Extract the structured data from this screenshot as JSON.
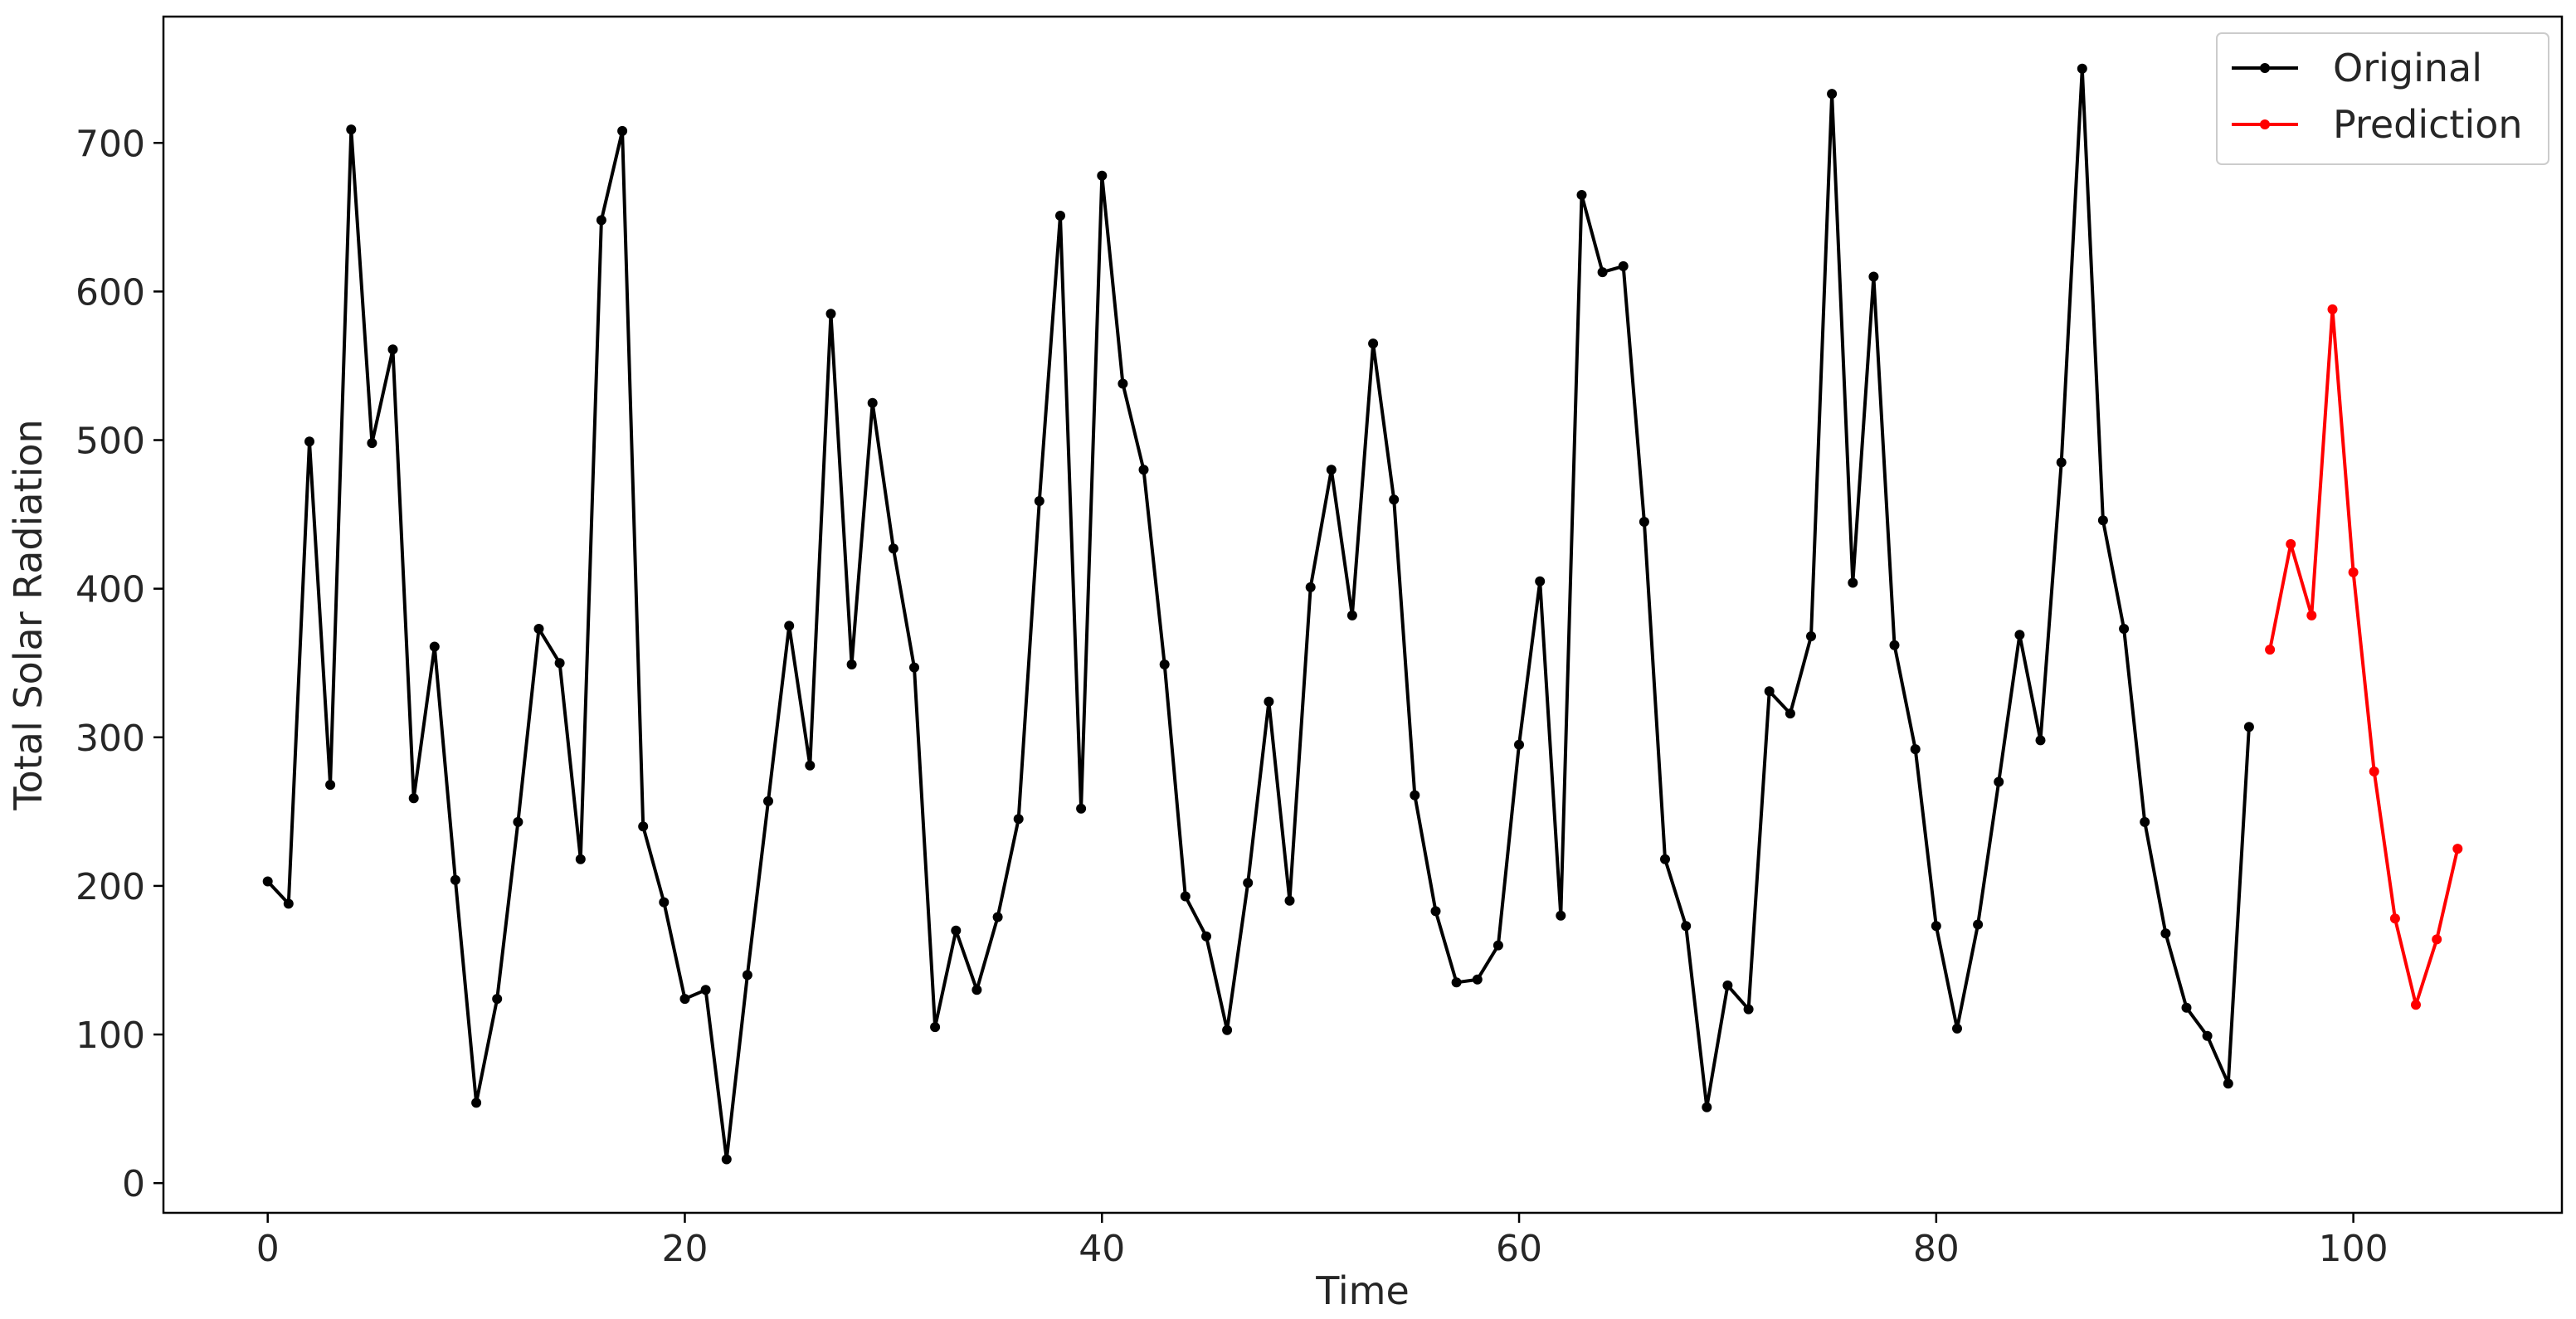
{
  "chart_data": {
    "type": "line",
    "title": "",
    "xlabel": "Time",
    "ylabel": "Total Solar Radiation",
    "xlim": [
      -5,
      110
    ],
    "ylim": [
      -20,
      785
    ],
    "xticks": [
      0,
      20,
      40,
      60,
      80,
      100
    ],
    "yticks": [
      0,
      100,
      200,
      300,
      400,
      500,
      600,
      700
    ],
    "grid": false,
    "legend_position": "top-right",
    "series": [
      {
        "name": "Original",
        "color": "#000000",
        "marker": "circle",
        "x_start": 0,
        "values": [
          203,
          188,
          499,
          268,
          709,
          498,
          561,
          259,
          361,
          204,
          54,
          124,
          243,
          373,
          350,
          218,
          648,
          708,
          240,
          189,
          124,
          130,
          16,
          140,
          257,
          375,
          281,
          585,
          349,
          525,
          427,
          347,
          105,
          170,
          130,
          179,
          245,
          459,
          651,
          252,
          678,
          538,
          480,
          349,
          193,
          166,
          103,
          202,
          324,
          190,
          401,
          480,
          382,
          565,
          460,
          261,
          183,
          135,
          137,
          160,
          295,
          405,
          180,
          665,
          613,
          617,
          445,
          218,
          173,
          51,
          133,
          117,
          331,
          316,
          368,
          733,
          404,
          610,
          362,
          292,
          173,
          104,
          174,
          270,
          369,
          298,
          485,
          750,
          446,
          373,
          243,
          168,
          118,
          99,
          67,
          307
        ]
      },
      {
        "name": "Prediction",
        "color": "#ff0000",
        "marker": "circle",
        "x_start": 96,
        "values": [
          359,
          430,
          382,
          588,
          411,
          277,
          178,
          120,
          164,
          225
        ]
      }
    ]
  }
}
